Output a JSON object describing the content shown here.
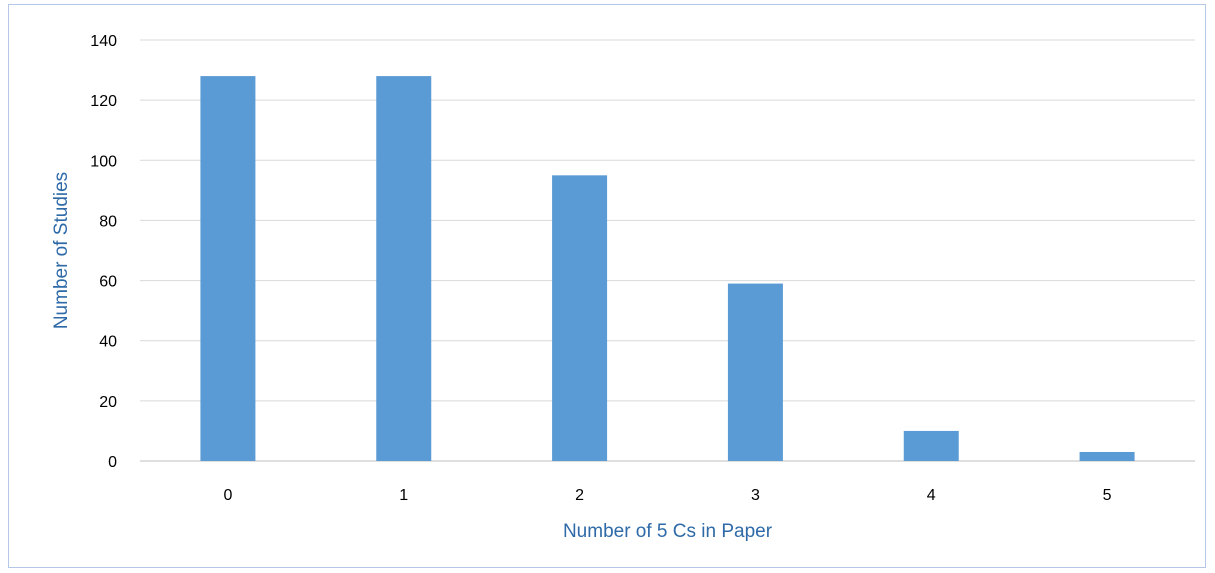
{
  "chart_data": {
    "type": "bar",
    "categories": [
      "0",
      "1",
      "2",
      "3",
      "4",
      "5"
    ],
    "values": [
      128,
      128,
      95,
      59,
      10,
      3
    ],
    "title": "",
    "xlabel": "Number of 5 Cs in Paper",
    "ylabel": "Number of Studies",
    "ylim": [
      0,
      140
    ],
    "yticks": [
      "0",
      "20",
      "40",
      "60",
      "80",
      "100",
      "120",
      "140"
    ],
    "grid": true,
    "legend": "none",
    "bar_color": "#5b9bd5",
    "grid_color": "#d9d9d9",
    "axis_title_color": "#2e6aa8"
  }
}
